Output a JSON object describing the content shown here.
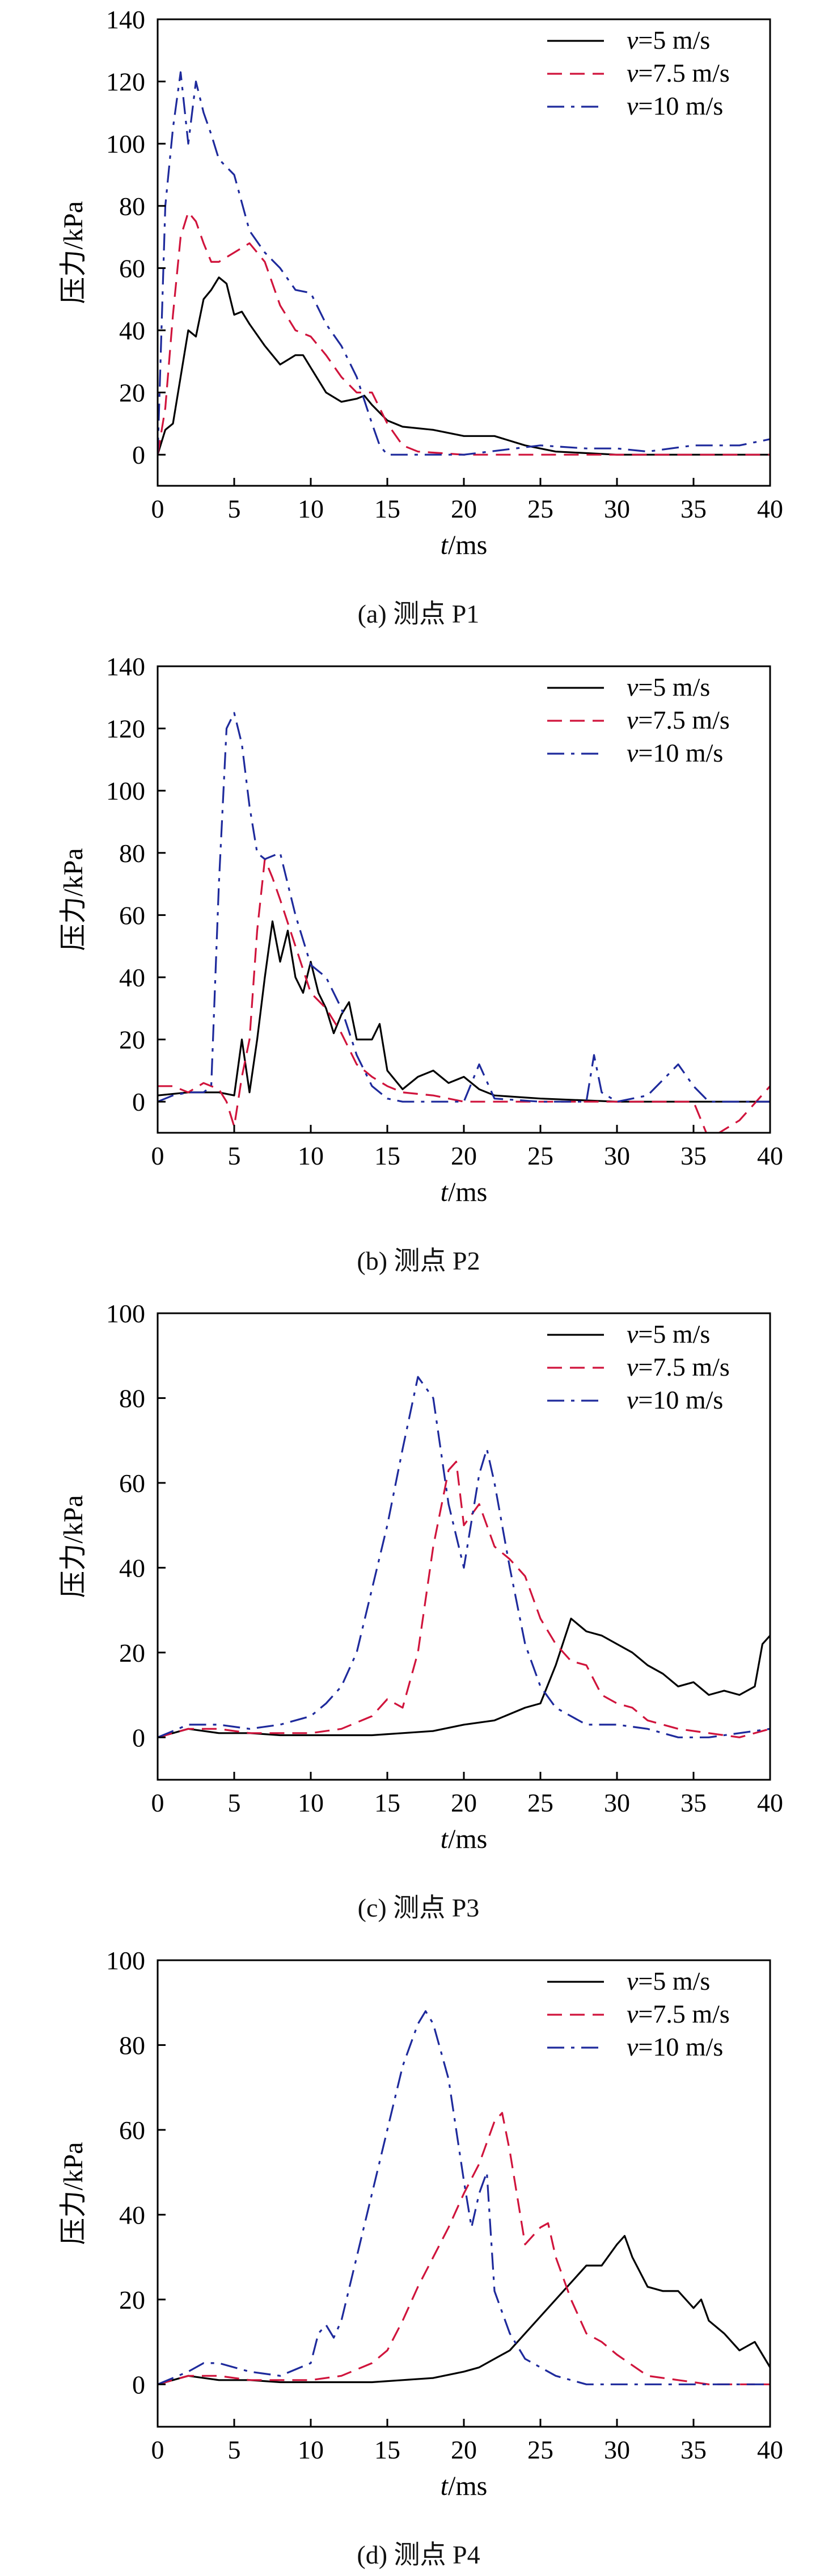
{
  "chart_data": [
    {
      "type": "line",
      "caption": "(a) 测点 P1",
      "xlabel_var": "t",
      "xlabel_unit": "/ms",
      "ylabel": "压力/kPa",
      "xlim": [
        0,
        40
      ],
      "ylim": [
        -10,
        140
      ],
      "xticks": [
        0,
        5,
        10,
        15,
        20,
        25,
        30,
        35,
        40
      ],
      "yticks": [
        0,
        20,
        40,
        60,
        80,
        100,
        120,
        140
      ],
      "legend_position": "top-right",
      "series": [
        {
          "var": "v",
          "name": "=5 m/s",
          "style": "solid",
          "color": "#000000",
          "x": [
            0,
            0.5,
            1,
            1.5,
            2,
            2.5,
            3,
            3.5,
            4,
            4.5,
            5,
            5.5,
            6,
            7,
            8,
            9,
            9.5,
            10,
            11,
            12,
            13,
            13.5,
            14,
            15,
            16,
            18,
            20,
            21,
            22,
            24,
            26,
            30,
            35,
            40
          ],
          "y": [
            0,
            8,
            10,
            25,
            40,
            38,
            50,
            53,
            57,
            55,
            45,
            46,
            42,
            35,
            29,
            32,
            32,
            28,
            20,
            17,
            18,
            19,
            16,
            11,
            9,
            8,
            6,
            6,
            6,
            3,
            1,
            0,
            0,
            0
          ]
        },
        {
          "var": "v",
          "name": "=7.5 m/s",
          "style": "dash",
          "color": "#d0143c",
          "x": [
            0,
            0.5,
            1,
            1.5,
            2,
            2.5,
            3,
            3.5,
            4,
            5,
            6,
            7,
            8,
            9,
            10,
            11,
            12,
            13,
            14,
            15,
            16,
            17,
            20,
            25,
            30,
            35,
            40
          ],
          "y": [
            0,
            15,
            45,
            70,
            78,
            75,
            68,
            62,
            62,
            65,
            68,
            62,
            48,
            40,
            38,
            32,
            25,
            20,
            20,
            10,
            3,
            1,
            0,
            0,
            0,
            0,
            0
          ]
        },
        {
          "var": "v",
          "name": "=10 m/s",
          "style": "dashdot",
          "color": "#1e2a9c",
          "x": [
            0,
            0.5,
            1,
            1.5,
            2,
            2.5,
            3,
            3.5,
            4,
            5,
            6,
            7,
            8,
            9,
            10,
            11,
            12,
            13,
            14,
            14.5,
            15,
            16,
            20,
            25,
            28,
            30,
            32,
            35,
            38,
            40
          ],
          "y": [
            0,
            80,
            105,
            123,
            100,
            120,
            110,
            103,
            95,
            90,
            72,
            65,
            60,
            53,
            52,
            42,
            35,
            25,
            10,
            3,
            0,
            0,
            0,
            3,
            2,
            2,
            1,
            3,
            3,
            5
          ]
        }
      ]
    },
    {
      "type": "line",
      "caption": "(b) 测点 P2",
      "xlabel_var": "t",
      "xlabel_unit": "/ms",
      "ylabel": "压力/kPa",
      "xlim": [
        0,
        40
      ],
      "ylim": [
        -10,
        140
      ],
      "xticks": [
        0,
        5,
        10,
        15,
        20,
        25,
        30,
        35,
        40
      ],
      "yticks": [
        0,
        20,
        40,
        60,
        80,
        100,
        120,
        140
      ],
      "legend_position": "top-right",
      "series": [
        {
          "var": "v",
          "name": "=5 m/s",
          "style": "solid",
          "color": "#000000",
          "x": [
            0,
            2,
            4,
            5,
            5.5,
            6,
            6.5,
            7,
            7.5,
            8,
            8.5,
            9,
            9.5,
            10,
            10.5,
            11,
            11.5,
            12,
            12.5,
            13,
            14,
            14.5,
            15,
            16,
            17,
            18,
            19,
            20,
            21,
            22,
            25,
            30,
            35,
            40
          ],
          "y": [
            2,
            3,
            3,
            2,
            20,
            3,
            20,
            40,
            58,
            45,
            55,
            40,
            35,
            45,
            35,
            30,
            22,
            28,
            32,
            20,
            20,
            25,
            10,
            4,
            8,
            10,
            6,
            8,
            4,
            2,
            1,
            0,
            0,
            0
          ]
        },
        {
          "var": "v",
          "name": "=7.5 m/s",
          "style": "dash",
          "color": "#d0143c",
          "x": [
            0,
            1,
            2,
            3,
            4,
            4.5,
            5,
            5.5,
            6,
            6.5,
            7,
            7.5,
            8,
            9,
            10,
            11,
            12,
            13,
            14,
            15,
            16,
            18,
            20,
            25,
            30,
            35,
            36,
            38,
            40
          ],
          "y": [
            5,
            5,
            3,
            6,
            4,
            0,
            -8,
            8,
            20,
            55,
            78,
            72,
            65,
            50,
            35,
            30,
            22,
            12,
            8,
            5,
            3,
            2,
            0,
            0,
            0,
            0,
            -12,
            -6,
            5
          ]
        },
        {
          "var": "v",
          "name": "=10 m/s",
          "style": "dashdot",
          "color": "#1e2a9c",
          "x": [
            0,
            1,
            2,
            3,
            3.5,
            4,
            4.5,
            5,
            5.5,
            6,
            6.5,
            7,
            8,
            9,
            10,
            11,
            12,
            13,
            14,
            15,
            16,
            18,
            20,
            21,
            22,
            25,
            28,
            28.5,
            29,
            30,
            32,
            34,
            35,
            36,
            38,
            40
          ],
          "y": [
            0,
            2,
            3,
            3,
            5,
            70,
            120,
            125,
            115,
            95,
            80,
            78,
            80,
            60,
            44,
            40,
            30,
            15,
            5,
            1,
            0,
            0,
            0,
            12,
            1,
            0,
            0,
            15,
            3,
            0,
            2,
            12,
            5,
            0,
            0,
            0
          ]
        }
      ]
    },
    {
      "type": "line",
      "caption": "(c) 测点 P3",
      "xlabel_var": "t",
      "xlabel_unit": "/ms",
      "ylabel": "压力/kPa",
      "xlim": [
        0,
        40
      ],
      "ylim": [
        -10,
        100
      ],
      "xticks": [
        0,
        5,
        10,
        15,
        20,
        25,
        30,
        35,
        40
      ],
      "yticks": [
        0,
        20,
        40,
        60,
        80,
        100
      ],
      "legend_position": "top-right",
      "series": [
        {
          "var": "v",
          "name": "=5 m/s",
          "style": "solid",
          "color": "#000000",
          "x": [
            0,
            2,
            4,
            6,
            8,
            10,
            12,
            14,
            16,
            18,
            20,
            22,
            24,
            25,
            26,
            27,
            28,
            29,
            30,
            31,
            32,
            33,
            34,
            35,
            36,
            37,
            38,
            39,
            39.5,
            40
          ],
          "y": [
            0,
            2,
            1,
            1,
            0.5,
            0.5,
            0.5,
            0.5,
            1,
            1.5,
            3,
            4,
            7,
            8,
            17,
            28,
            25,
            24,
            22,
            20,
            17,
            15,
            12,
            13,
            10,
            11,
            10,
            12,
            22,
            24
          ]
        },
        {
          "var": "v",
          "name": "=7.5 m/s",
          "style": "dash",
          "color": "#d0143c",
          "x": [
            0,
            2,
            4,
            6,
            8,
            10,
            12,
            14,
            15,
            16,
            17,
            18,
            19,
            19.5,
            20,
            21,
            22,
            23,
            24,
            25,
            26,
            27,
            28,
            29,
            30,
            31,
            32,
            34,
            36,
            38,
            40
          ],
          "y": [
            0,
            2,
            2,
            1,
            1,
            1,
            2,
            5,
            9,
            7,
            20,
            45,
            63,
            65,
            50,
            55,
            45,
            42,
            38,
            28,
            22,
            18,
            17,
            10,
            8,
            7,
            4,
            2,
            1,
            0,
            2
          ]
        },
        {
          "var": "v",
          "name": "=10 m/s",
          "style": "dashdot",
          "color": "#1e2a9c",
          "x": [
            0,
            2,
            4,
            6,
            8,
            10,
            11,
            12,
            13,
            14,
            15,
            16,
            17,
            18,
            19,
            20,
            21,
            21.5,
            22,
            23,
            24,
            25,
            26,
            28,
            30,
            32,
            34,
            36,
            38,
            40
          ],
          "y": [
            0,
            3,
            3,
            2,
            3,
            5,
            8,
            12,
            20,
            35,
            50,
            68,
            85,
            80,
            55,
            40,
            62,
            68,
            60,
            40,
            22,
            12,
            7,
            3,
            3,
            2,
            0,
            0,
            1,
            2
          ]
        }
      ]
    },
    {
      "type": "line",
      "caption": "(d) 测点 P4",
      "xlabel_var": "t",
      "xlabel_unit": "/ms",
      "ylabel": "压力/kPa",
      "xlim": [
        0,
        40
      ],
      "ylim": [
        -10,
        100
      ],
      "xticks": [
        0,
        5,
        10,
        15,
        20,
        25,
        30,
        35,
        40
      ],
      "yticks": [
        0,
        20,
        40,
        60,
        80,
        100
      ],
      "legend_position": "top-right",
      "series": [
        {
          "var": "v",
          "name": "=5 m/s",
          "style": "solid",
          "color": "#000000",
          "x": [
            0,
            2,
            4,
            6,
            8,
            10,
            12,
            14,
            16,
            18,
            20,
            21,
            22,
            23,
            24,
            25,
            26,
            27,
            28,
            29,
            30,
            30.5,
            31,
            32,
            33,
            34,
            35,
            35.5,
            36,
            37,
            38,
            39,
            40
          ],
          "y": [
            0,
            2,
            1,
            1,
            0.5,
            0.5,
            0.5,
            0.5,
            1,
            1.5,
            3,
            4,
            6,
            8,
            12,
            16,
            20,
            24,
            28,
            28,
            33,
            35,
            30,
            23,
            22,
            22,
            18,
            20,
            15,
            12,
            8,
            10,
            4
          ]
        },
        {
          "var": "v",
          "name": "=7.5 m/s",
          "style": "dash",
          "color": "#d0143c",
          "x": [
            0,
            2,
            4,
            6,
            8,
            10,
            12,
            14,
            15,
            16,
            17,
            18,
            19,
            20,
            21,
            22,
            22.5,
            23,
            24,
            25,
            25.5,
            26,
            27,
            28,
            29,
            30,
            32,
            34,
            36,
            38,
            40
          ],
          "y": [
            0,
            2,
            2,
            1,
            1,
            1,
            2,
            5,
            8,
            15,
            23,
            30,
            37,
            45,
            52,
            62,
            64,
            55,
            33,
            37,
            38,
            30,
            20,
            12,
            10,
            7,
            2,
            1,
            0,
            0,
            0
          ]
        },
        {
          "var": "v",
          "name": "=10 m/s",
          "style": "dashdot",
          "color": "#1e2a9c",
          "x": [
            0,
            2,
            3,
            4,
            6,
            8,
            10,
            10.5,
            11,
            11.5,
            12,
            13,
            14,
            15,
            16,
            17,
            17.5,
            18,
            19,
            20,
            20.5,
            21,
            21.5,
            22,
            23,
            24,
            26,
            28,
            30,
            35,
            40
          ],
          "y": [
            0,
            3,
            5,
            5,
            3,
            2,
            5,
            12,
            14,
            11,
            15,
            30,
            45,
            60,
            75,
            85,
            88,
            85,
            72,
            48,
            37,
            45,
            50,
            22,
            12,
            6,
            2,
            0,
            0,
            0,
            0
          ]
        }
      ]
    }
  ]
}
